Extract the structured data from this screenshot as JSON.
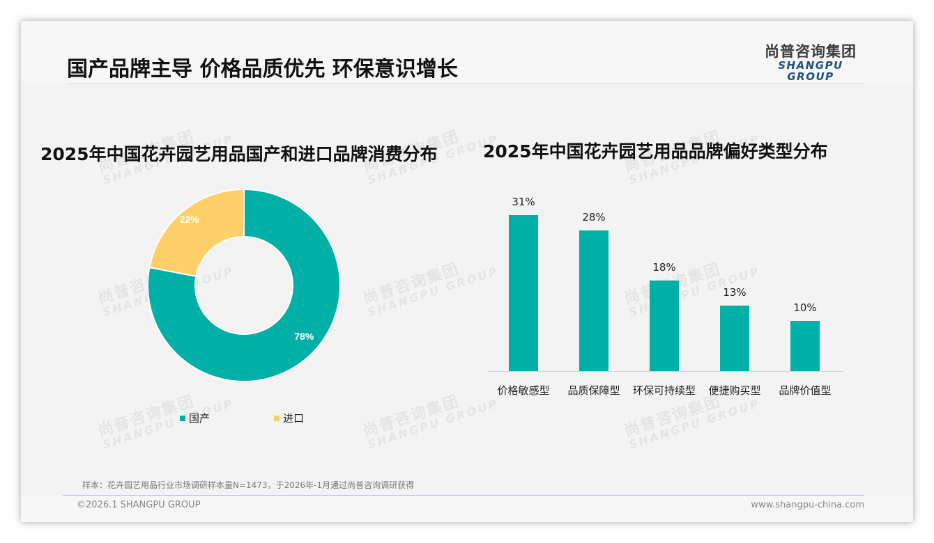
{
  "header": {
    "title": "国产品牌主导 价格品质优先 环保意识增长",
    "logo_cn": "尚普咨询集团",
    "logo_en": "SHANGPU GROUP"
  },
  "watermark": {
    "cn": "尚普咨询集团",
    "en": "SHANGPU GROUP"
  },
  "colors": {
    "teal": "#00b0a6",
    "yellow": "#ffcf69",
    "background": "#f3f3f3"
  },
  "chart_data": [
    {
      "type": "pie",
      "variant": "donut",
      "title": "2025年中国花卉园艺用品国产和进口品牌消费分布",
      "categories": [
        "国产",
        "进口"
      ],
      "values": [
        78,
        22
      ],
      "labels": [
        "78%",
        "22%"
      ],
      "colors": [
        "#00b0a6",
        "#ffcf69"
      ],
      "legend_position": "bottom"
    },
    {
      "type": "bar",
      "title": "2025年中国花卉园艺用品品牌偏好类型分布",
      "categories": [
        "价格敏感型",
        "品质保障型",
        "环保可持续型",
        "便捷购买型",
        "品牌价值型"
      ],
      "values": [
        31,
        28,
        18,
        13,
        10
      ],
      "labels": [
        "31%",
        "28%",
        "18%",
        "13%",
        "10%"
      ],
      "xlabel": "",
      "ylabel": "",
      "ylim": [
        0,
        31
      ],
      "grid": false,
      "color": "#00b0a6"
    }
  ],
  "footer": {
    "note": "样本：花卉园艺用品行业市场调研样本量N=1473，于2026年-1月通过尚普咨询调研获得",
    "copyright": "©2026.1 SHANGPU GROUP",
    "website": "www.shangpu-china.com"
  }
}
